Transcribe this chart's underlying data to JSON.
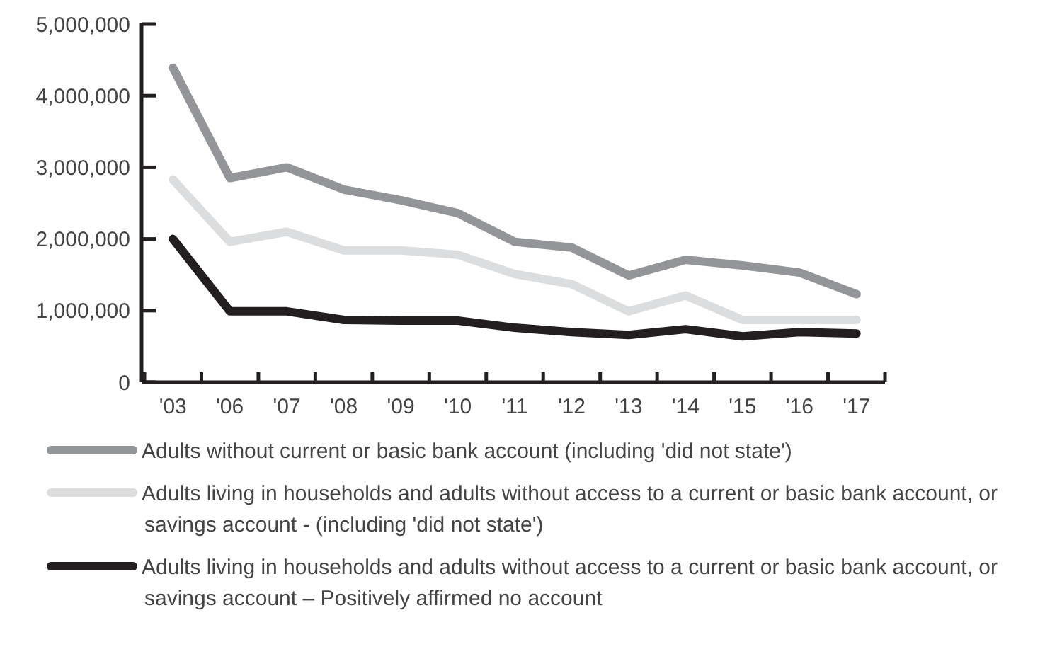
{
  "chart_data": {
    "type": "line",
    "categories": [
      "'03",
      "'06",
      "'07",
      "'08",
      "'09",
      "'10",
      "'11",
      "'12",
      "'13",
      "'14",
      "'15",
      "'16",
      "'17"
    ],
    "series": [
      {
        "name": "Adults without current or basic bank account (including 'did not state')",
        "color": "#939598",
        "values": [
          4390000,
          2850000,
          3000000,
          2690000,
          2540000,
          2360000,
          1960000,
          1880000,
          1490000,
          1710000,
          1630000,
          1530000,
          1230000
        ]
      },
      {
        "name": "Adults living in households and adults without access to a current or basic bank account, or savings account - (including 'did not state')",
        "color": "#dcddde",
        "values": [
          2830000,
          1960000,
          2100000,
          1840000,
          1840000,
          1780000,
          1510000,
          1370000,
          990000,
          1210000,
          870000,
          870000,
          870000
        ]
      },
      {
        "name": "Adults living in households and adults without access to a current or basic bank account, or savings account – Positively affirmed no account",
        "color": "#231f20",
        "values": [
          2000000,
          990000,
          990000,
          870000,
          860000,
          860000,
          760000,
          700000,
          660000,
          740000,
          640000,
          700000,
          680000
        ]
      }
    ],
    "ylim": [
      0,
      5000000
    ],
    "yticks": [
      {
        "value": 0,
        "label": "0"
      },
      {
        "value": 1000000,
        "label": "1,000,000"
      },
      {
        "value": 2000000,
        "label": "2,000,000"
      },
      {
        "value": 3000000,
        "label": "3,000,000"
      },
      {
        "value": 4000000,
        "label": "4,000,000"
      },
      {
        "value": 5000000,
        "label": "5,000,000"
      }
    ],
    "grid": false,
    "legend": "bottom",
    "marker": "none",
    "line_style": "solid"
  }
}
